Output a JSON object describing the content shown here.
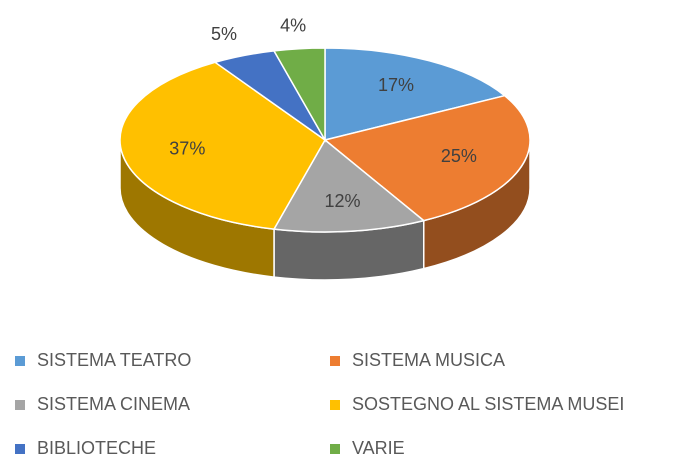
{
  "chart_data": {
    "type": "pie3d",
    "categories": [
      "SISTEMA TEATRO",
      "SISTEMA MUSICA",
      "SISTEMA CINEMA",
      "SOSTEGNO AL SISTEMA MUSEI",
      "BIBLIOTECHE",
      "VARIE"
    ],
    "values": [
      17,
      25,
      12,
      37,
      5,
      4
    ],
    "value_labels": [
      "17%",
      "25%",
      "12%",
      "37%",
      "5%",
      "4%"
    ],
    "colors": [
      "#5b9bd5",
      "#ed7d31",
      "#a5a5a5",
      "#ffc000",
      "#4472c4",
      "#70ad47"
    ],
    "legend": "bottom"
  }
}
